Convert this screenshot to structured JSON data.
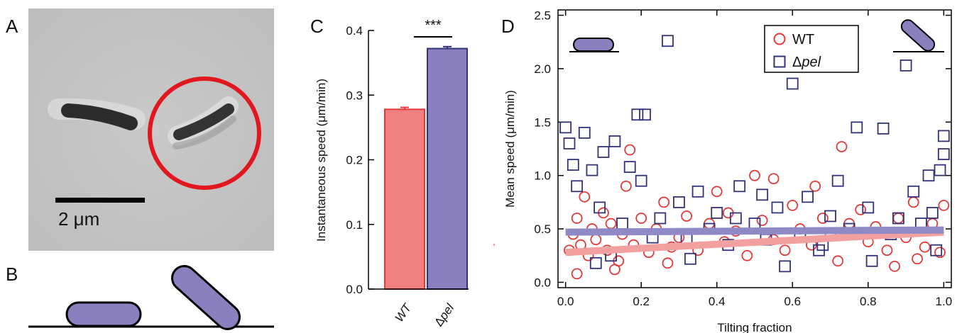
{
  "panels": {
    "a": "A",
    "b": "B",
    "c": "C",
    "d": "D"
  },
  "micrograph": {
    "scalebar_label": "2 μm"
  },
  "colors": {
    "wt": "#e53a3a",
    "wt_fill": "#f08080",
    "pel": "#33337a",
    "pel_fill": "#8a80c0",
    "wt_fit": "#f3a0a0",
    "pel_fit": "#8f8ac6",
    "circle": "#e0181e"
  },
  "chart_data": [
    {
      "panel": "C",
      "type": "bar",
      "categories": [
        "WT",
        "Δpel"
      ],
      "values": [
        0.278,
        0.372
      ],
      "errors": [
        0.003,
        0.003
      ],
      "ylabel": "Instantaneous speed (μm/min)",
      "ylim": [
        0,
        0.4
      ],
      "yticks": [
        "0.0",
        "0.1",
        "0.2",
        "0.3",
        "0.4"
      ],
      "significance": "***",
      "grid": false
    },
    {
      "panel": "D",
      "type": "scatter",
      "xlabel": "Tilting fraction",
      "ylabel": "Mean speed (μm/min)",
      "xlim": [
        -0.02,
        1.02
      ],
      "ylim": [
        -0.05,
        2.55
      ],
      "xticks": [
        "0.0",
        "0.2",
        "0.4",
        "0.6",
        "0.8",
        "1.0"
      ],
      "yticks": [
        "0.0",
        "0.5",
        "1.0",
        "1.5",
        "2.0",
        "2.5"
      ],
      "legend_position": "top-center",
      "legend": [
        "WT",
        "Δpel"
      ],
      "series": [
        {
          "name": "WT",
          "marker": "circle",
          "fit": [
            [
              0.0,
              0.28
            ],
            [
              1.0,
              0.47
            ]
          ],
          "points": [
            [
              0.01,
              0.3
            ],
            [
              0.02,
              0.45
            ],
            [
              0.03,
              0.6
            ],
            [
              0.04,
              0.35
            ],
            [
              0.05,
              0.8
            ],
            [
              0.06,
              0.25
            ],
            [
              0.07,
              0.5
            ],
            [
              0.08,
              0.4
            ],
            [
              0.1,
              0.65
            ],
            [
              0.11,
              0.3
            ],
            [
              0.12,
              0.55
            ],
            [
              0.14,
              0.2
            ],
            [
              0.15,
              0.45
            ],
            [
              0.16,
              0.9
            ],
            [
              0.18,
              0.35
            ],
            [
              0.2,
              0.6
            ],
            [
              0.22,
              0.28
            ],
            [
              0.24,
              0.5
            ],
            [
              0.26,
              0.75
            ],
            [
              0.28,
              0.33
            ],
            [
              0.3,
              0.42
            ],
            [
              0.32,
              0.62
            ],
            [
              0.35,
              0.3
            ],
            [
              0.38,
              0.55
            ],
            [
              0.4,
              0.85
            ],
            [
              0.42,
              0.38
            ],
            [
              0.45,
              0.48
            ],
            [
              0.48,
              0.25
            ],
            [
              0.5,
              1.0
            ],
            [
              0.52,
              0.58
            ],
            [
              0.55,
              0.4
            ],
            [
              0.58,
              0.3
            ],
            [
              0.6,
              0.72
            ],
            [
              0.62,
              0.5
            ],
            [
              0.65,
              0.35
            ],
            [
              0.68,
              0.6
            ],
            [
              0.7,
              0.45
            ],
            [
              0.72,
              0.2
            ],
            [
              0.73,
              1.27
            ],
            [
              0.75,
              0.55
            ],
            [
              0.78,
              0.68
            ],
            [
              0.8,
              0.38
            ],
            [
              0.82,
              0.52
            ],
            [
              0.85,
              0.3
            ],
            [
              0.87,
              0.15
            ],
            [
              0.88,
              0.6
            ],
            [
              0.9,
              0.42
            ],
            [
              0.92,
              0.75
            ],
            [
              0.95,
              0.33
            ],
            [
              0.97,
              0.55
            ],
            [
              0.99,
              0.28
            ],
            [
              1.0,
              0.72
            ],
            [
              0.17,
              1.24
            ],
            [
              0.55,
              0.97
            ],
            [
              0.13,
              0.12
            ],
            [
              0.43,
              0.65
            ],
            [
              0.66,
              0.9
            ],
            [
              0.03,
              0.08
            ],
            [
              0.27,
              0.18
            ],
            [
              0.93,
              0.22
            ]
          ]
        },
        {
          "name": "Δpel",
          "marker": "square",
          "fit": [
            [
              0.0,
              0.47
            ],
            [
              1.0,
              0.49
            ]
          ],
          "points": [
            [
              0.0,
              1.45
            ],
            [
              0.01,
              1.3
            ],
            [
              0.02,
              1.1
            ],
            [
              0.03,
              0.9
            ],
            [
              0.05,
              1.4
            ],
            [
              0.07,
              1.05
            ],
            [
              0.09,
              0.7
            ],
            [
              0.1,
              1.22
            ],
            [
              0.13,
              1.32
            ],
            [
              0.15,
              0.55
            ],
            [
              0.17,
              1.08
            ],
            [
              0.19,
              1.57
            ],
            [
              0.21,
              1.57
            ],
            [
              0.2,
              0.95
            ],
            [
              0.25,
              0.6
            ],
            [
              0.27,
              2.26
            ],
            [
              0.3,
              0.75
            ],
            [
              0.32,
              0.4
            ],
            [
              0.35,
              0.85
            ],
            [
              0.38,
              0.5
            ],
            [
              0.4,
              0.65
            ],
            [
              0.43,
              0.35
            ],
            [
              0.46,
              0.9
            ],
            [
              0.5,
              0.55
            ],
            [
              0.53,
              0.4
            ],
            [
              0.56,
              0.7
            ],
            [
              0.6,
              1.86
            ],
            [
              0.62,
              0.45
            ],
            [
              0.64,
              0.8
            ],
            [
              0.67,
              0.3
            ],
            [
              0.7,
              0.62
            ],
            [
              0.72,
              0.95
            ],
            [
              0.75,
              0.5
            ],
            [
              0.77,
              1.45
            ],
            [
              0.8,
              0.7
            ],
            [
              0.84,
              1.44
            ],
            [
              0.86,
              0.45
            ],
            [
              0.9,
              2.03
            ],
            [
              0.92,
              0.85
            ],
            [
              0.94,
              0.55
            ],
            [
              0.96,
              1.0
            ],
            [
              0.98,
              0.3
            ],
            [
              1.0,
              1.37
            ],
            [
              1.0,
              1.2
            ],
            [
              0.99,
              1.05
            ],
            [
              0.97,
              0.65
            ],
            [
              0.12,
              0.25
            ],
            [
              0.33,
              0.22
            ],
            [
              0.58,
              0.15
            ],
            [
              0.81,
              0.2
            ],
            [
              0.45,
              0.6
            ],
            [
              0.23,
              0.42
            ],
            [
              0.68,
              0.35
            ],
            [
              0.88,
              0.6
            ],
            [
              0.08,
              0.18
            ],
            [
              0.52,
              0.82
            ]
          ]
        }
      ]
    }
  ]
}
